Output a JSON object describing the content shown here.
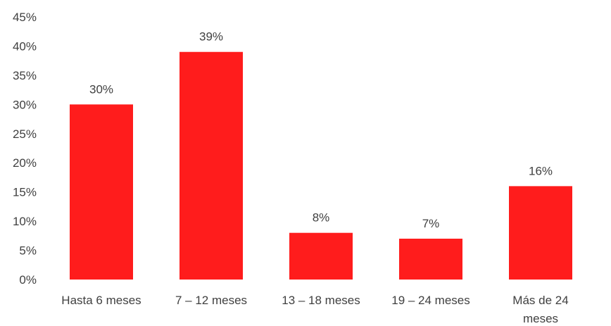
{
  "chart_data": {
    "type": "bar",
    "categories": [
      "Hasta 6 meses",
      "7 – 12 meses",
      "13 – 18 meses",
      "19 – 24 meses",
      "Más de 24 meses"
    ],
    "category_lines": [
      [
        "Hasta 6 meses"
      ],
      [
        "7 – 12 meses"
      ],
      [
        "13 – 18 meses"
      ],
      [
        "19 – 24 meses"
      ],
      [
        "Más de 24",
        "meses"
      ]
    ],
    "values": [
      30,
      39,
      8,
      7,
      16
    ],
    "data_labels": [
      "30%",
      "39%",
      "8%",
      "7%",
      "16%"
    ],
    "ylim": [
      0,
      45
    ],
    "y_ticks": [
      0,
      5,
      10,
      15,
      20,
      25,
      30,
      35,
      40,
      45
    ],
    "y_tick_labels": [
      "0%",
      "5%",
      "10%",
      "15%",
      "20%",
      "25%",
      "30%",
      "35%",
      "40%",
      "45%"
    ],
    "title": "",
    "xlabel": "",
    "ylabel": "",
    "grid": false,
    "legend": "none",
    "bar_color": "#ff1c1c"
  }
}
